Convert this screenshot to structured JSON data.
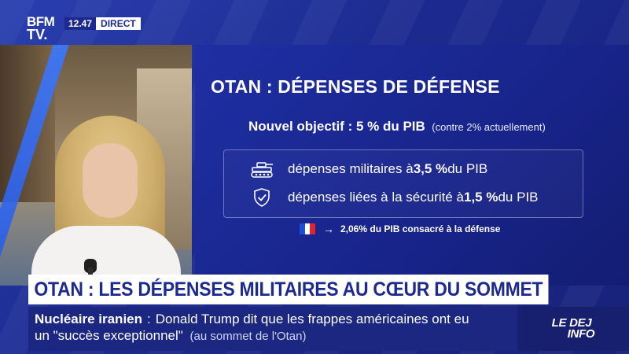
{
  "channel": {
    "logo_line1": "BFM",
    "logo_line2": "TV.",
    "time": "12.47",
    "live_label": "DIRECT"
  },
  "panel": {
    "title": "OTAN : DÉPENSES DE DÉFENSE",
    "objective_main": "Nouvel objectif : 5 % du PIB",
    "objective_note": "(contre 2% actuellement)",
    "rows": [
      {
        "icon": "tank-icon",
        "prefix": "dépenses militaires à ",
        "value": "3,5 %",
        "suffix": " du PIB"
      },
      {
        "icon": "shield-check-icon",
        "prefix": "dépenses liées à la sécurité à ",
        "value": "1,5 %",
        "suffix": " du PIB"
      }
    ],
    "france_note": "2,06% du PIB consacré à la défense"
  },
  "banner": {
    "headline": "OTAN : LES DÉPENSES MILITAIRES AU CŒUR DU SOMMET",
    "ticker_topic": "Nucléaire iranien",
    "ticker_sep": ":",
    "ticker_text1": "Donald Trump dit que les frappes américaines ont eu",
    "ticker_text2": "un \"succès exceptionnel\"",
    "ticker_paren": "(au sommet de l'Otan)"
  },
  "program": {
    "line1": "LE DEJ",
    "line2": "INFO"
  },
  "colors": {
    "brand_blue": "#1c2a8f",
    "flag_blue": "#1f4fd1",
    "flag_white": "#ffffff",
    "flag_red": "#e2242b"
  }
}
